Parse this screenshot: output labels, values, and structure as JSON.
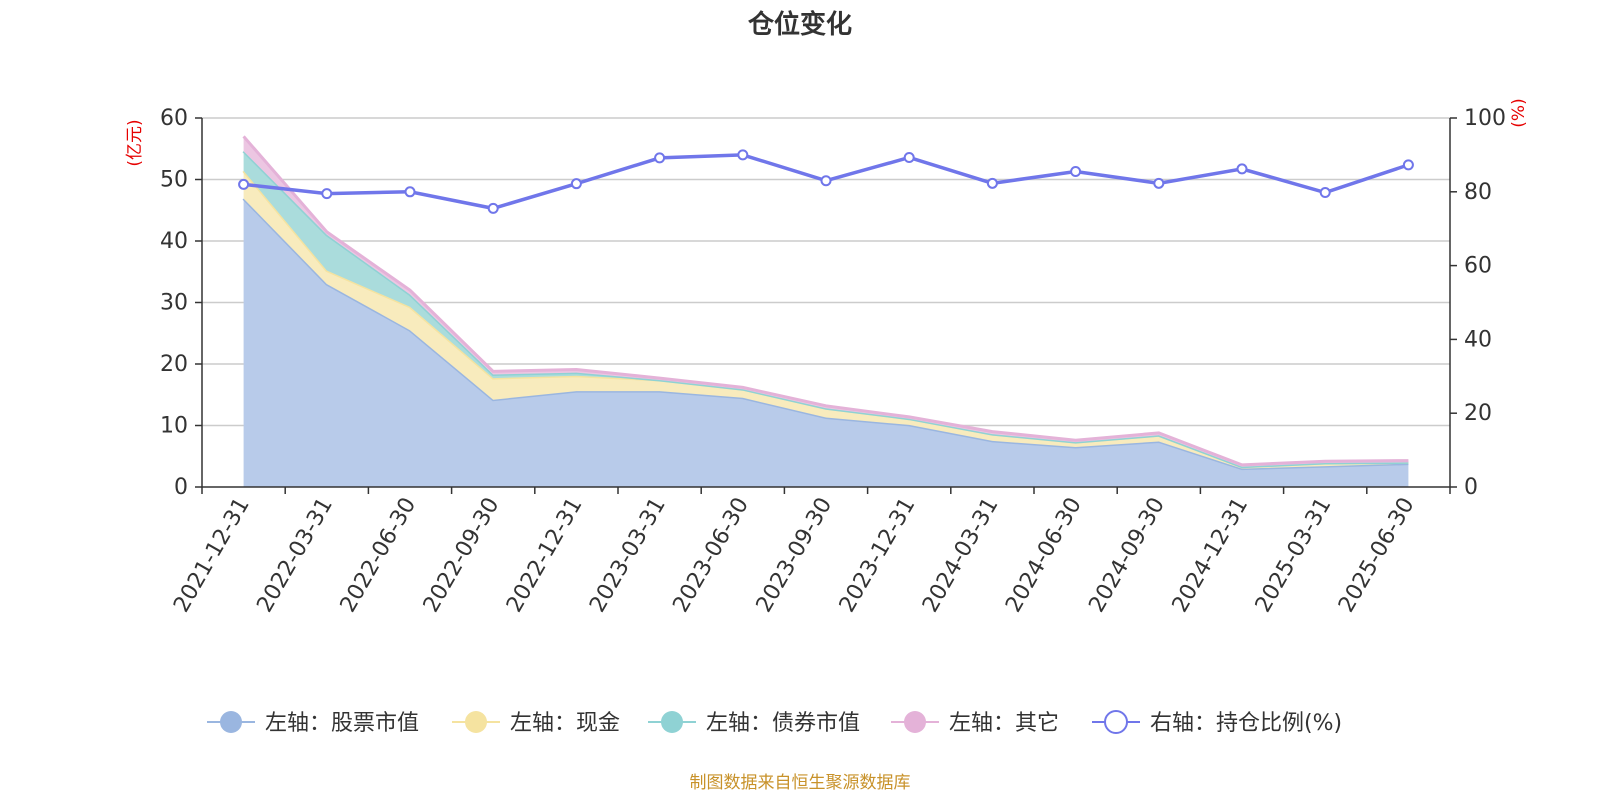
{
  "chart_data": {
    "type": "area",
    "title": "仓位变化",
    "left_unit": "(亿元)",
    "right_unit": "(%)",
    "categories": [
      "2021-12-31",
      "2022-03-31",
      "2022-06-30",
      "2022-09-30",
      "2022-12-31",
      "2023-03-31",
      "2023-06-30",
      "2023-09-30",
      "2023-12-31",
      "2024-03-31",
      "2024-06-30",
      "2024-09-30",
      "2024-12-31",
      "2025-03-31",
      "2025-06-30"
    ],
    "left_axis": {
      "min": 0,
      "max": 60,
      "ticks": [
        "0",
        "10",
        "20",
        "30",
        "40",
        "50",
        "60"
      ]
    },
    "right_axis": {
      "min": 0,
      "max": 100,
      "ticks": [
        "0",
        "20",
        "40",
        "60",
        "80",
        "100"
      ]
    },
    "grid": true,
    "stacked": true,
    "series": [
      {
        "name": "左轴：股票市值",
        "axis": "left",
        "color": "#9ab6e0",
        "fill": "#b8cbea",
        "values": [
          46.9,
          33.0,
          25.5,
          14.2,
          15.6,
          15.6,
          14.5,
          11.3,
          10.1,
          7.5,
          6.5,
          7.4,
          3.0,
          3.4,
          3.8
        ]
      },
      {
        "name": "左轴：现金",
        "axis": "left",
        "color": "#f5e3a0",
        "fill": "#f8ebbd",
        "values": [
          4.5,
          2.2,
          3.8,
          3.5,
          2.5,
          1.8,
          1.4,
          1.5,
          1.0,
          1.1,
          0.8,
          1.0,
          0.3,
          0.5,
          0.2
        ]
      },
      {
        "name": "左轴：债券市值",
        "axis": "left",
        "color": "#8fd2d4",
        "fill": "#aadcdc",
        "values": [
          3.2,
          5.8,
          2.0,
          0.6,
          0.5,
          0.0,
          0.0,
          0.0,
          0.0,
          0.0,
          0.0,
          0.0,
          0.0,
          0.0,
          0.0
        ]
      },
      {
        "name": "左轴：其它",
        "axis": "left",
        "color": "#e4b2d8",
        "fill": "#ecc6e2",
        "values": [
          2.4,
          0.5,
          0.7,
          0.5,
          0.5,
          0.3,
          0.3,
          0.4,
          0.3,
          0.4,
          0.3,
          0.4,
          0.3,
          0.3,
          0.3
        ]
      },
      {
        "name": "右轴：持仓比例(%)",
        "axis": "right",
        "type": "line",
        "color": "#7076ea",
        "values": [
          82.0,
          79.5,
          80.0,
          75.5,
          82.2,
          89.2,
          90.0,
          83.0,
          89.3,
          82.3,
          85.5,
          82.3,
          86.2,
          79.8,
          87.3
        ]
      }
    ],
    "legend_position": "bottom",
    "source": "制图数据来自恒生聚源数据库"
  }
}
